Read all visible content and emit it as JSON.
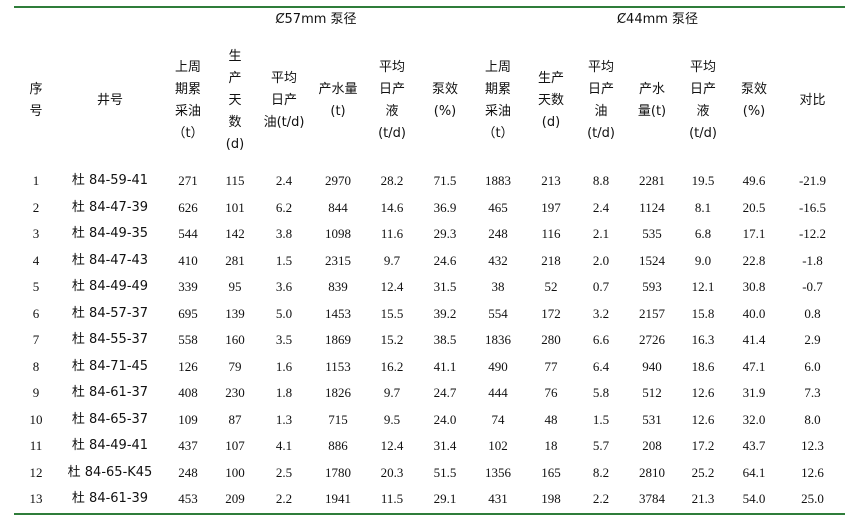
{
  "groups": {
    "g57": "Ȼ57mm 泵径",
    "g44": "Ȼ44mm 泵径"
  },
  "headers": {
    "seq": [
      "序",
      "号"
    ],
    "well": "井号",
    "prev57": [
      "上周",
      "期累",
      "采油",
      "（t）"
    ],
    "days57": [
      "生",
      "产",
      "天",
      "数",
      "(d)"
    ],
    "oil57": [
      "平均",
      "日产",
      "油(t/d)"
    ],
    "water57": "产水量(t)",
    "liq57": [
      "平均",
      "日产",
      "液",
      "(t/d)"
    ],
    "eff57": [
      "泵效",
      "(%)"
    ],
    "prev44": [
      "上周",
      "期累",
      "采油",
      "（t）"
    ],
    "days44": [
      "生产",
      "天数",
      "(d)"
    ],
    "oil44": [
      "平均",
      "日产",
      "油",
      "(t/d)"
    ],
    "water44": [
      "产水",
      "量(t)"
    ],
    "liq44": [
      "平均",
      "日产",
      "液",
      "(t/d)"
    ],
    "eff44": [
      "泵效",
      "(%)"
    ],
    "compare": "对比"
  },
  "rows": [
    [
      "1",
      "杜 84-59-41",
      "271",
      "115",
      "2.4",
      "2970",
      "28.2",
      "71.5",
      "1883",
      "213",
      "8.8",
      "2281",
      "19.5",
      "49.6",
      "-21.9"
    ],
    [
      "2",
      "杜 84-47-39",
      "626",
      "101",
      "6.2",
      "844",
      "14.6",
      "36.9",
      "465",
      "197",
      "2.4",
      "1124",
      "8.1",
      "20.5",
      "-16.5"
    ],
    [
      "3",
      "杜 84-49-35",
      "544",
      "142",
      "3.8",
      "1098",
      "11.6",
      "29.3",
      "248",
      "116",
      "2.1",
      "535",
      "6.8",
      "17.1",
      "-12.2"
    ],
    [
      "4",
      "杜 84-47-43",
      "410",
      "281",
      "1.5",
      "2315",
      "9.7",
      "24.6",
      "432",
      "218",
      "2.0",
      "1524",
      "9.0",
      "22.8",
      "-1.8"
    ],
    [
      "5",
      "杜 84-49-49",
      "339",
      "95",
      "3.6",
      "839",
      "12.4",
      "31.5",
      "38",
      "52",
      "0.7",
      "593",
      "12.1",
      "30.8",
      "-0.7"
    ],
    [
      "6",
      "杜 84-57-37",
      "695",
      "139",
      "5.0",
      "1453",
      "15.5",
      "39.2",
      "554",
      "172",
      "3.2",
      "2157",
      "15.8",
      "40.0",
      "0.8"
    ],
    [
      "7",
      "杜 84-55-37",
      "558",
      "160",
      "3.5",
      "1869",
      "15.2",
      "38.5",
      "1836",
      "280",
      "6.6",
      "2726",
      "16.3",
      "41.4",
      "2.9"
    ],
    [
      "8",
      "杜 84-71-45",
      "126",
      "79",
      "1.6",
      "1153",
      "16.2",
      "41.1",
      "490",
      "77",
      "6.4",
      "940",
      "18.6",
      "47.1",
      "6.0"
    ],
    [
      "9",
      "杜 84-61-37",
      "408",
      "230",
      "1.8",
      "1826",
      "9.7",
      "24.7",
      "444",
      "76",
      "5.8",
      "512",
      "12.6",
      "31.9",
      "7.3"
    ],
    [
      "10",
      "杜 84-65-37",
      "109",
      "87",
      "1.3",
      "715",
      "9.5",
      "24.0",
      "74",
      "48",
      "1.5",
      "531",
      "12.6",
      "32.0",
      "8.0"
    ],
    [
      "11",
      "杜 84-49-41",
      "437",
      "107",
      "4.1",
      "886",
      "12.4",
      "31.4",
      "102",
      "18",
      "5.7",
      "208",
      "17.2",
      "43.7",
      "12.3"
    ],
    [
      "12",
      "杜 84-65-K45",
      "248",
      "100",
      "2.5",
      "1780",
      "20.3",
      "51.5",
      "1356",
      "165",
      "8.2",
      "2810",
      "25.2",
      "64.1",
      "12.6"
    ],
    [
      "13",
      "杜 84-61-39",
      "453",
      "209",
      "2.2",
      "1941",
      "11.5",
      "29.1",
      "431",
      "198",
      "2.2",
      "3784",
      "21.3",
      "54.0",
      "25.0"
    ]
  ]
}
